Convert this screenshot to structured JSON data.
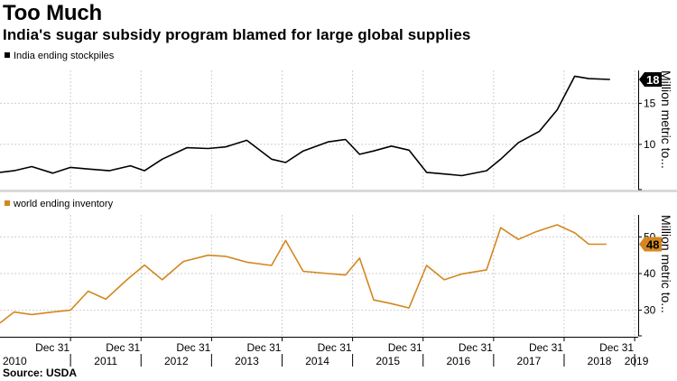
{
  "title": "Too Much",
  "subtitle": "India's sugar subsidy program blamed for large global supplies",
  "source": "Source: USDA",
  "x_ticks": [
    "Dec 31",
    "Dec 31",
    "Dec 31",
    "Dec 31",
    "Dec 31",
    "Dec 31",
    "Dec 31",
    "Dec 31",
    "Dec 31"
  ],
  "x_years": [
    "2010",
    "2011",
    "2012",
    "2013",
    "2014",
    "2015",
    "2016",
    "2017",
    "2018",
    "2019"
  ],
  "chart_data": [
    {
      "type": "line",
      "legend": "India ending stockpiles",
      "color": "#000000",
      "ylabel": "Million metric to...",
      "ylim": [
        4.5,
        19
      ],
      "yticks": [
        10,
        15
      ],
      "grid": true,
      "last_value_badge": "18",
      "x": [
        2010.0,
        2010.2,
        2010.45,
        2010.75,
        2011.0,
        2011.25,
        2011.55,
        2011.85,
        2012.05,
        2012.3,
        2012.65,
        2012.95,
        2013.2,
        2013.5,
        2013.85,
        2014.05,
        2014.3,
        2014.65,
        2014.9,
        2015.1,
        2015.3,
        2015.55,
        2015.8,
        2016.05,
        2016.3,
        2016.55,
        2016.9,
        2017.1,
        2017.35,
        2017.65,
        2017.9,
        2018.15,
        2018.35,
        2018.65
      ],
      "y": [
        6.6,
        6.8,
        7.3,
        6.5,
        7.2,
        7.0,
        6.8,
        7.4,
        6.8,
        8.2,
        9.6,
        9.5,
        9.7,
        10.5,
        8.2,
        7.8,
        9.2,
        10.3,
        10.6,
        8.8,
        9.2,
        9.8,
        9.3,
        6.6,
        6.4,
        6.2,
        6.8,
        8.2,
        10.2,
        11.6,
        14.2,
        18.3,
        18.0,
        17.9
      ]
    },
    {
      "type": "line",
      "legend": "world ending inventory",
      "color": "#d4871e",
      "ylabel": "Million metric to...",
      "ylim": [
        23,
        56
      ],
      "yticks": [
        30,
        40,
        50
      ],
      "grid": true,
      "last_value_badge": "48",
      "x": [
        2010.0,
        2010.2,
        2010.45,
        2010.75,
        2011.0,
        2011.25,
        2011.5,
        2011.8,
        2012.05,
        2012.3,
        2012.6,
        2012.95,
        2013.2,
        2013.5,
        2013.85,
        2014.05,
        2014.3,
        2014.65,
        2014.9,
        2015.1,
        2015.3,
        2015.55,
        2015.8,
        2016.05,
        2016.3,
        2016.55,
        2016.9,
        2017.1,
        2017.35,
        2017.6,
        2017.9,
        2018.15,
        2018.35,
        2018.6
      ],
      "y": [
        26.5,
        29.5,
        28.8,
        29.5,
        30.0,
        35.2,
        33.0,
        38.3,
        42.3,
        38.3,
        43.3,
        45.0,
        44.7,
        43.1,
        42.2,
        49.0,
        40.6,
        40.0,
        39.6,
        44.2,
        32.8,
        31.8,
        30.6,
        42.2,
        38.3,
        39.9,
        41.0,
        52.5,
        49.3,
        51.4,
        53.3,
        51.1,
        48.0,
        48.0
      ]
    }
  ]
}
